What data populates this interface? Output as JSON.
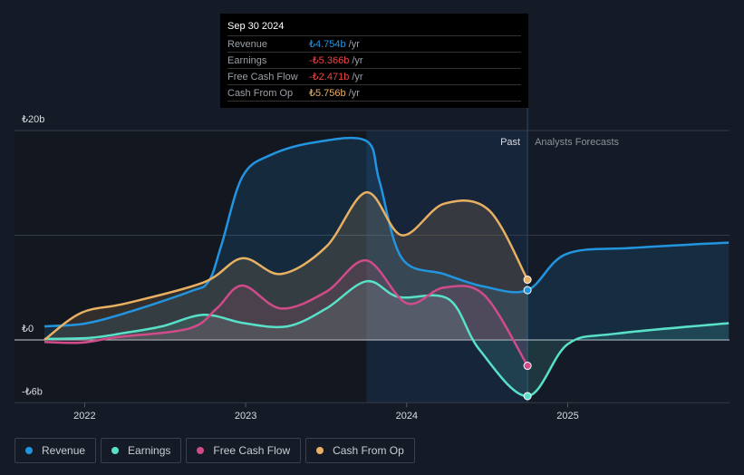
{
  "tooltip": {
    "date": "Sep 30 2024",
    "rows": [
      {
        "label": "Revenue",
        "value": "₺4.754b",
        "unit": "/yr",
        "color": "#2394df"
      },
      {
        "label": "Earnings",
        "value": "-₺5.366b",
        "unit": "/yr",
        "color": "#e64545"
      },
      {
        "label": "Free Cash Flow",
        "value": "-₺2.471b",
        "unit": "/yr",
        "color": "#e64545"
      },
      {
        "label": "Cash From Op",
        "value": "₺5.756b",
        "unit": "/yr",
        "color": "#e8b063"
      }
    ]
  },
  "chart_data": {
    "type": "area",
    "ylim": [
      -6,
      20
    ],
    "xlim": [
      2021.75,
      2026.0
    ],
    "past_end": 2024.75,
    "highlight_start": 2023.75,
    "y_ticks": [
      {
        "value": 20,
        "label": "₺20b"
      },
      {
        "value": 0,
        "label": "₺0"
      },
      {
        "value": -6,
        "label": "-₺6b"
      }
    ],
    "gridlines": [
      20,
      10,
      0,
      -6
    ],
    "x_ticks": [
      {
        "value": 2022,
        "label": "2022"
      },
      {
        "value": 2023,
        "label": "2023"
      },
      {
        "value": 2024,
        "label": "2024"
      },
      {
        "value": 2025,
        "label": "2025"
      }
    ],
    "past_label": "Past",
    "forecast_label": "Analysts Forecasts",
    "series": [
      {
        "name": "Revenue",
        "color": "#2394df",
        "points": [
          [
            2021.75,
            1.3
          ],
          [
            2022.0,
            1.56
          ],
          [
            2022.26,
            2.6
          ],
          [
            2022.65,
            4.6
          ],
          [
            2022.77,
            5.6
          ],
          [
            2022.85,
            9.1
          ],
          [
            2022.98,
            15.6
          ],
          [
            2023.16,
            17.7
          ],
          [
            2023.44,
            18.9
          ],
          [
            2023.75,
            19.0
          ],
          [
            2023.83,
            15.2
          ],
          [
            2023.97,
            7.8
          ],
          [
            2024.23,
            6.3
          ],
          [
            2024.48,
            5.1
          ],
          [
            2024.75,
            4.754
          ],
          [
            2024.99,
            8.2
          ],
          [
            2025.41,
            8.8
          ],
          [
            2026.0,
            9.3
          ]
        ]
      },
      {
        "name": "Earnings",
        "color": "#58e0c8",
        "points": [
          [
            2021.75,
            0.1
          ],
          [
            2022.03,
            0.2
          ],
          [
            2022.26,
            0.7
          ],
          [
            2022.48,
            1.3
          ],
          [
            2022.74,
            2.4
          ],
          [
            2022.99,
            1.6
          ],
          [
            2023.26,
            1.3
          ],
          [
            2023.5,
            3.0
          ],
          [
            2023.75,
            5.6
          ],
          [
            2023.95,
            4.1
          ],
          [
            2024.26,
            3.9
          ],
          [
            2024.45,
            -0.9
          ],
          [
            2024.75,
            -5.366
          ],
          [
            2025.0,
            -0.4
          ],
          [
            2025.3,
            0.6
          ],
          [
            2026.0,
            1.6
          ]
        ]
      },
      {
        "name": "Free Cash Flow",
        "color": "#d04b8a",
        "points": [
          [
            2021.75,
            -0.2
          ],
          [
            2021.98,
            -0.26
          ],
          [
            2022.2,
            0.26
          ],
          [
            2022.65,
            1.1
          ],
          [
            2022.82,
            3.0
          ],
          [
            2022.98,
            5.2
          ],
          [
            2023.22,
            3.0
          ],
          [
            2023.5,
            4.6
          ],
          [
            2023.75,
            7.6
          ],
          [
            2024.0,
            3.5
          ],
          [
            2024.23,
            5.0
          ],
          [
            2024.48,
            4.3
          ],
          [
            2024.75,
            -2.471
          ]
        ]
      },
      {
        "name": "Cash From Op",
        "color": "#e8b063",
        "points": [
          [
            2021.75,
            0
          ],
          [
            2021.98,
            2.6
          ],
          [
            2022.26,
            3.5
          ],
          [
            2022.74,
            5.5
          ],
          [
            2022.98,
            7.8
          ],
          [
            2023.22,
            6.3
          ],
          [
            2023.5,
            8.9
          ],
          [
            2023.75,
            14.1
          ],
          [
            2023.97,
            10.0
          ],
          [
            2024.23,
            13.0
          ],
          [
            2024.51,
            12.4
          ],
          [
            2024.75,
            5.756
          ]
        ]
      }
    ]
  }
}
